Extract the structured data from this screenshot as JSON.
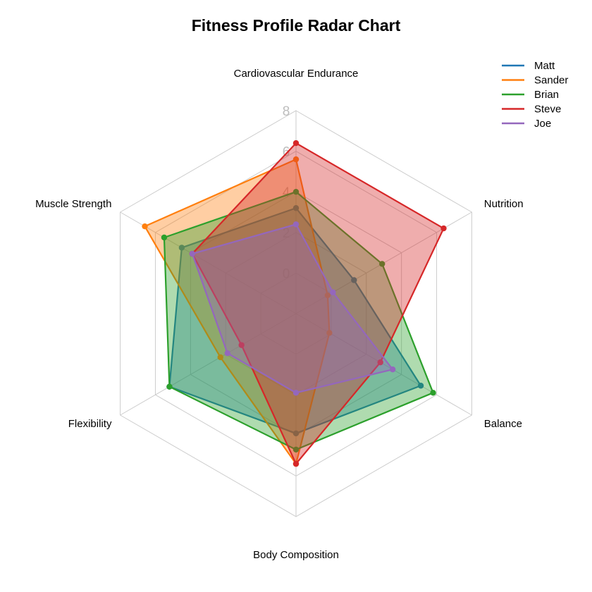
{
  "chart_data": {
    "type": "radar",
    "title": "Fitness Profile Radar Chart",
    "axes": [
      "Cardiovascular Endurance",
      "Nutrition",
      "Balance",
      "Body Composition",
      "Flexibility",
      "Muscle Strength"
    ],
    "rlim": [
      -2,
      8
    ],
    "rticks": [
      0,
      2,
      4,
      6,
      8
    ],
    "grid": true,
    "legend_position": "top-right",
    "series": [
      {
        "name": "Matt",
        "color": "#1f77b4",
        "values": [
          3.2,
          1.3,
          5.1,
          3.9,
          5.2,
          4.5
        ]
      },
      {
        "name": "Sander",
        "color": "#ff7f0e",
        "values": [
          5.6,
          -0.2,
          -0.1,
          5.4,
          2.3,
          6.6
        ]
      },
      {
        "name": "Brian",
        "color": "#2ca02c",
        "values": [
          4.0,
          2.9,
          5.8,
          4.7,
          5.2,
          5.5
        ]
      },
      {
        "name": "Steve",
        "color": "#d62728",
        "values": [
          6.4,
          6.4,
          2.8,
          5.4,
          1.1,
          3.9
        ]
      },
      {
        "name": "Joe",
        "color": "#9467bd",
        "values": [
          2.4,
          0.1,
          3.5,
          1.9,
          1.9,
          3.9
        ]
      }
    ]
  }
}
